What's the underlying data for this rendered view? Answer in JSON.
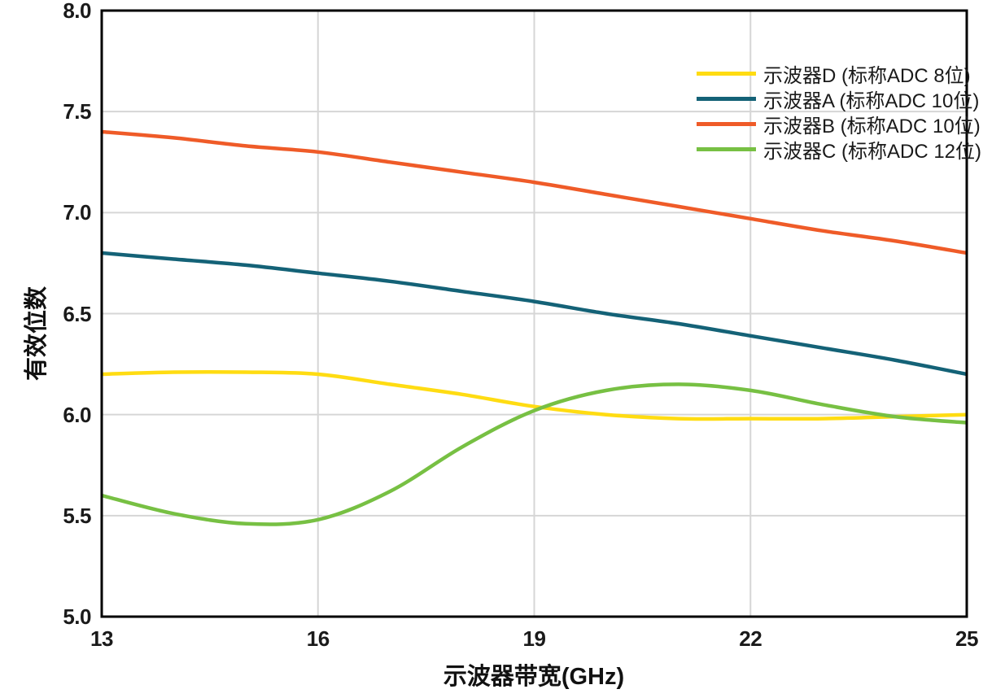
{
  "chart_data": {
    "type": "line",
    "title": "",
    "xlabel": "示波器带宽(GHz)",
    "ylabel": "有效位数",
    "x": [
      13,
      14,
      15,
      16,
      17,
      18,
      19,
      20,
      21,
      22,
      23,
      24,
      25
    ],
    "xlim": [
      13,
      25
    ],
    "ylim": [
      5.0,
      8.0
    ],
    "x_tick_values": [
      13,
      16,
      19,
      22,
      25
    ],
    "x_tick_labels": [
      "13",
      "16",
      "19",
      "22",
      "25"
    ],
    "y_tick_values": [
      8.0,
      7.5,
      7.0,
      6.5,
      6.0,
      5.5,
      5.0
    ],
    "y_tick_labels": [
      "8.0",
      "7.5",
      "7.0",
      "6.5",
      "6.0",
      "5.5",
      "5.0"
    ],
    "grid": true,
    "legend_position": "top-right-inside",
    "series": [
      {
        "name": "示波器D (标称ADC 8位)",
        "color": "#FFDC12",
        "values": [
          6.2,
          6.21,
          6.21,
          6.2,
          6.15,
          6.1,
          6.04,
          6.0,
          5.98,
          5.98,
          5.98,
          5.99,
          6.0
        ]
      },
      {
        "name": "示波器A (标称ADC 10位)",
        "color": "#146277",
        "values": [
          6.8,
          6.77,
          6.74,
          6.7,
          6.66,
          6.61,
          6.56,
          6.5,
          6.45,
          6.39,
          6.33,
          6.27,
          6.2
        ]
      },
      {
        "name": "示波器B (标称ADC 10位)",
        "color": "#EF5B28",
        "values": [
          7.4,
          7.37,
          7.33,
          7.3,
          7.25,
          7.2,
          7.15,
          7.09,
          7.03,
          6.97,
          6.91,
          6.86,
          6.8
        ]
      },
      {
        "name": "示波器C (标称ADC 12位)",
        "color": "#77C043",
        "values": [
          5.6,
          5.51,
          5.46,
          5.48,
          5.62,
          5.84,
          6.02,
          6.12,
          6.15,
          6.12,
          6.05,
          5.99,
          5.96
        ]
      }
    ]
  },
  "colors": {
    "background": "#FFFFFF",
    "grid": "#D6D6D6",
    "axis_frame": "#000000",
    "text": "#1A1A1A"
  }
}
